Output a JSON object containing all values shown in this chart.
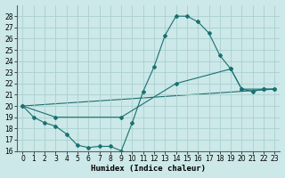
{
  "xlabel": "Humidex (Indice chaleur)",
  "bg_color": "#cce8e8",
  "grid_color": "#aad0d0",
  "line_color": "#1a7070",
  "ylim": [
    16,
    29
  ],
  "xlim": [
    -0.5,
    23.5
  ],
  "yticks": [
    16,
    17,
    18,
    19,
    20,
    21,
    22,
    23,
    24,
    25,
    26,
    27,
    28
  ],
  "xticks": [
    0,
    1,
    2,
    3,
    4,
    5,
    6,
    7,
    8,
    9,
    10,
    11,
    12,
    13,
    14,
    15,
    16,
    17,
    18,
    19,
    20,
    21,
    22,
    23
  ],
  "line1_x": [
    0,
    1,
    2,
    3,
    4,
    5,
    6,
    7,
    8,
    9,
    10,
    11,
    12,
    13,
    14,
    15,
    16,
    17,
    18,
    19,
    20,
    21,
    22,
    23
  ],
  "line1_y": [
    20,
    19,
    18.5,
    18.2,
    17.5,
    16.5,
    16.3,
    16.4,
    16.4,
    16.0,
    18.5,
    21.3,
    23.5,
    26.3,
    28.0,
    28.0,
    27.5,
    26.5,
    24.5,
    23.3,
    21.5,
    21.3,
    21.5,
    21.5
  ],
  "line2_x": [
    0,
    3,
    9,
    14,
    19,
    20,
    22,
    23
  ],
  "line2_y": [
    20,
    19,
    19,
    22.0,
    23.3,
    21.5,
    21.5,
    21.5
  ],
  "line3_x": [
    0,
    23
  ],
  "line3_y": [
    20,
    21.5
  ]
}
